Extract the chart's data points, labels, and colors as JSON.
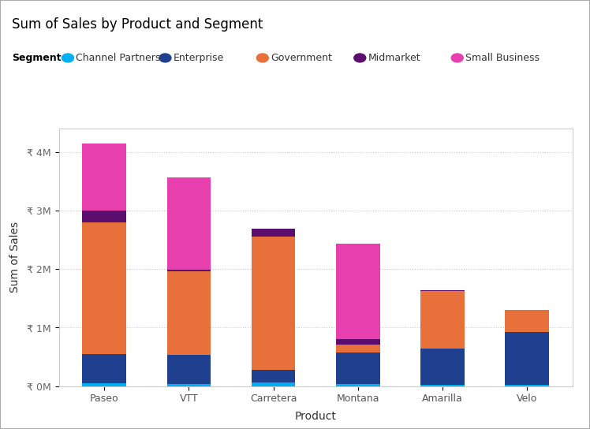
{
  "title": "Sum of Sales by Product and Segment",
  "xlabel": "Product",
  "ylabel": "Sum of Sales",
  "legend_title": "Segment",
  "categories": [
    "Paseo",
    "VTT",
    "Carretera",
    "Montana",
    "Amarilla",
    "Velo"
  ],
  "segments": [
    "Channel Partners",
    "Enterprise",
    "Government",
    "Midmarket",
    "Small Business"
  ],
  "colors": {
    "Channel Partners": "#00B0F0",
    "Enterprise": "#1F3F8F",
    "Government": "#E8703A",
    "Midmarket": "#5C0E6E",
    "Small Business": "#E83FAF"
  },
  "data": {
    "Channel Partners": [
      50000,
      30000,
      60000,
      30000,
      20000,
      20000
    ],
    "Enterprise": [
      500000,
      500000,
      220000,
      550000,
      620000,
      900000
    ],
    "Government": [
      2250000,
      1430000,
      2280000,
      130000,
      980000,
      380000
    ],
    "Midmarket": [
      200000,
      30000,
      130000,
      90000,
      20000,
      0
    ],
    "Small Business": [
      1150000,
      1580000,
      0,
      1640000,
      0,
      0
    ]
  },
  "yticks": [
    0,
    1000000,
    2000000,
    3000000,
    4000000
  ],
  "ytick_labels": [
    "₹ 0M",
    "₹ 1M",
    "₹ 2M",
    "₹ 3M",
    "₹ 4M"
  ],
  "ylim": [
    0,
    4400000
  ],
  "background_color": "#FFFFFF",
  "plot_bg_color": "#FFFFFF",
  "grid_color": "#CCCCCC",
  "border_color": "#AAAAAA",
  "title_fontsize": 12,
  "axis_label_fontsize": 10,
  "tick_fontsize": 9,
  "legend_fontsize": 9,
  "bar_width": 0.52
}
